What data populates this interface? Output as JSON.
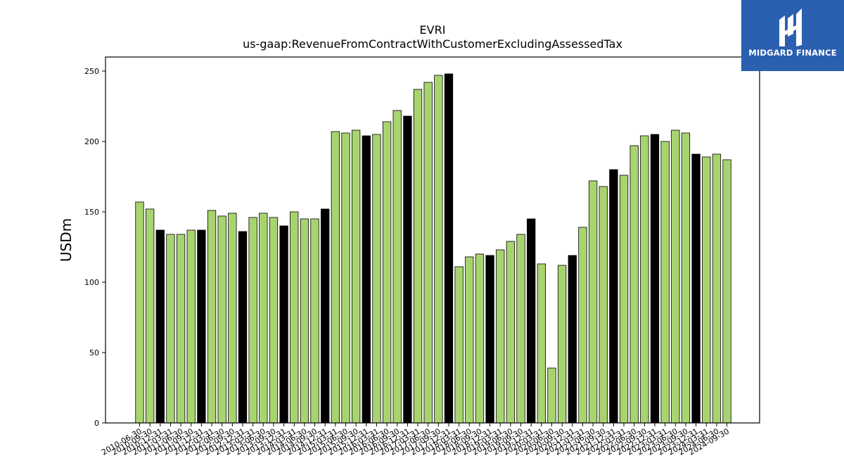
{
  "chart_data": {
    "type": "bar",
    "title": "EVRI",
    "subtitle": "us-gaap:RevenueFromContractWithCustomerExcludingAssessedTax",
    "ylabel": "USDm",
    "xlabel": "",
    "ylim": [
      0,
      260
    ],
    "yticks": [
      0,
      50,
      100,
      150,
      200,
      250
    ],
    "grid": false,
    "colors": {
      "quarter": "#a8d46f",
      "year_end": "#000000",
      "edge": "#000000"
    },
    "categories": [
      "2010-06-30",
      "2010-09-30",
      "2010-12-31",
      "2011-03-31",
      "2011-06-30",
      "2011-09-30",
      "2011-12-31",
      "2012-03-31",
      "2012-06-30",
      "2012-09-30",
      "2012-12-31",
      "2013-03-31",
      "2013-06-30",
      "2013-09-30",
      "2013-12-31",
      "2014-03-31",
      "2014-06-30",
      "2014-09-30",
      "2014-12-31",
      "2015-03-31",
      "2015-06-30",
      "2015-09-30",
      "2015-12-31",
      "2016-03-31",
      "2016-06-30",
      "2016-09-30",
      "2016-12-31",
      "2017-03-31",
      "2017-06-30",
      "2017-09-30",
      "2017-12-31",
      "2018-03-31",
      "2018-06-30",
      "2018-09-30",
      "2018-12-31",
      "2019-03-31",
      "2019-06-30",
      "2019-09-30",
      "2019-12-31",
      "2020-03-31",
      "2020-06-30",
      "2020-09-30",
      "2020-12-31",
      "2021-03-31",
      "2021-06-30",
      "2021-09-30",
      "2021-12-31",
      "2022-03-31",
      "2022-06-30",
      "2022-09-30",
      "2022-12-31",
      "2023-03-31",
      "2023-06-30",
      "2023-09-30",
      "2023-12-31",
      "2024-03-31",
      "2024-06-30",
      "2024-09-30"
    ],
    "values": [
      157,
      152,
      137,
      134,
      134,
      137,
      137,
      151,
      147,
      149,
      136,
      146,
      149,
      146,
      140,
      150,
      145,
      145,
      152,
      207,
      206,
      208,
      204,
      205,
      214,
      222,
      218,
      237,
      242,
      247,
      248,
      111,
      118,
      120,
      119,
      123,
      129,
      134,
      145,
      113,
      39,
      112,
      119,
      139,
      172,
      168,
      180,
      176,
      197,
      204,
      205,
      200,
      208,
      206,
      191,
      189,
      191,
      187
    ],
    "highlight": [
      false,
      false,
      true,
      false,
      false,
      false,
      true,
      false,
      false,
      false,
      true,
      false,
      false,
      false,
      true,
      false,
      false,
      false,
      true,
      false,
      false,
      false,
      true,
      false,
      false,
      false,
      true,
      false,
      false,
      false,
      true,
      false,
      false,
      false,
      true,
      false,
      false,
      false,
      true,
      false,
      false,
      false,
      true,
      false,
      false,
      false,
      true,
      false,
      false,
      false,
      true,
      false,
      false,
      false,
      true,
      false,
      false,
      false
    ]
  },
  "logo": {
    "text": "MIDGARD FINANCE"
  }
}
